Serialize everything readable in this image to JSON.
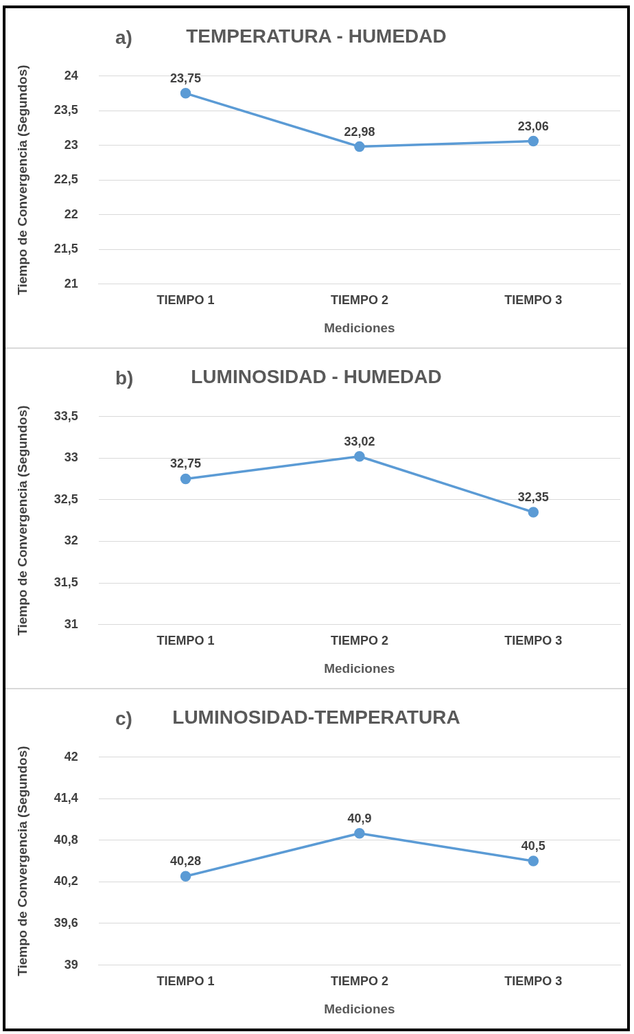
{
  "chart_data": [
    {
      "type": "line",
      "title": "TEMPERATURA - HUMEDAD",
      "annotations": [
        "a)"
      ],
      "xlabel": "Mediciones",
      "ylabel": "Tiempo de Convergencia (Segundos)",
      "categories": [
        "TIEMPO 1",
        "TIEMPO 2",
        "TIEMPO 3"
      ],
      "series": [
        {
          "color": "#5b9bd5",
          "values": [
            23.75,
            22.98,
            23.06
          ],
          "value_labels": [
            "23,75",
            "22,98",
            "23,06"
          ]
        }
      ],
      "ylim": [
        21,
        24
      ],
      "yticks": [
        21,
        {
          "value": 21.5,
          "label": "21,5"
        },
        22,
        {
          "value": 22.5,
          "label": "22,5"
        },
        23,
        {
          "value": 23.5,
          "label": "23,5"
        },
        24
      ],
      "grid": "y",
      "marker": "circle",
      "line_style": "solid",
      "legend": false
    },
    {
      "type": "line",
      "title": "LUMINOSIDAD - HUMEDAD",
      "annotations": [
        "b)"
      ],
      "xlabel": "Mediciones",
      "ylabel": "Tiempo de Convergencia (Segundos)",
      "categories": [
        "TIEMPO 1",
        "TIEMPO 2",
        "TIEMPO 3"
      ],
      "series": [
        {
          "color": "#5b9bd5",
          "values": [
            32.75,
            33.02,
            32.35
          ],
          "value_labels": [
            "32,75",
            "33,02",
            "32,35"
          ]
        }
      ],
      "ylim": [
        31,
        33.5
      ],
      "yticks": [
        31,
        {
          "value": 31.5,
          "label": "31,5"
        },
        32,
        {
          "value": 32.5,
          "label": "32,5"
        },
        33,
        {
          "value": 33.5,
          "label": "33,5"
        }
      ],
      "grid": "y",
      "marker": "circle",
      "line_style": "solid",
      "legend": false
    },
    {
      "type": "line",
      "title": "LUMINOSIDAD-TEMPERATURA",
      "annotations": [
        "c)"
      ],
      "xlabel": "Mediciones",
      "ylabel": "Tiempo de Convergencia (Segundos)",
      "categories": [
        "TIEMPO 1",
        "TIEMPO 2",
        "TIEMPO 3"
      ],
      "series": [
        {
          "color": "#5b9bd5",
          "values": [
            40.28,
            40.9,
            40.5
          ],
          "value_labels": [
            "40,28",
            "40,9",
            "40,5"
          ]
        }
      ],
      "ylim": [
        39,
        42
      ],
      "yticks": [
        39,
        {
          "value": 39.6,
          "label": "39,6"
        },
        {
          "value": 40.2,
          "label": "40,2"
        },
        {
          "value": 40.8,
          "label": "40,8"
        },
        {
          "value": 41.4,
          "label": "41,4"
        },
        42
      ],
      "grid": "y",
      "marker": "circle",
      "line_style": "solid",
      "legend": false
    }
  ]
}
